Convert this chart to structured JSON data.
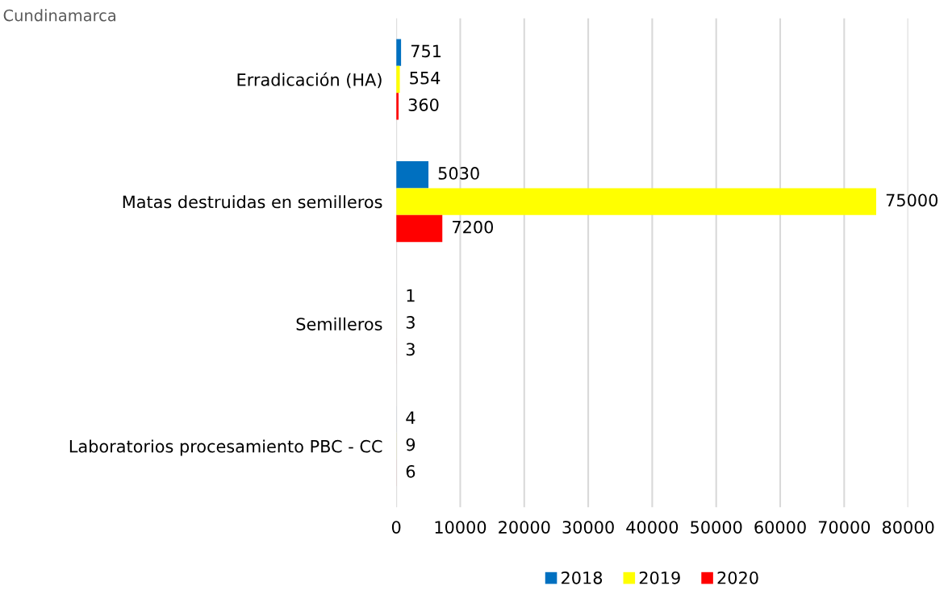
{
  "chart_data": {
    "type": "bar",
    "orientation": "horizontal",
    "title": "Cundinamarca",
    "categories": [
      "Erradicación (HA)",
      "Matas destruidas en semilleros",
      "Semilleros",
      "Laboratorios procesamiento PBC - CC"
    ],
    "series": [
      {
        "name": "2018",
        "color": "#0070c0",
        "values": [
          751,
          5030,
          1,
          4
        ]
      },
      {
        "name": "2019",
        "color": "#ffff00",
        "values": [
          554,
          75000,
          3,
          9
        ]
      },
      {
        "name": "2020",
        "color": "#ff0000",
        "values": [
          360,
          7200,
          3,
          6
        ]
      }
    ],
    "xlim": [
      0,
      80000
    ],
    "xticks": [
      0,
      10000,
      20000,
      30000,
      40000,
      50000,
      60000,
      70000,
      80000
    ],
    "grid": "x",
    "legend": "bottom",
    "data_labels": true
  }
}
